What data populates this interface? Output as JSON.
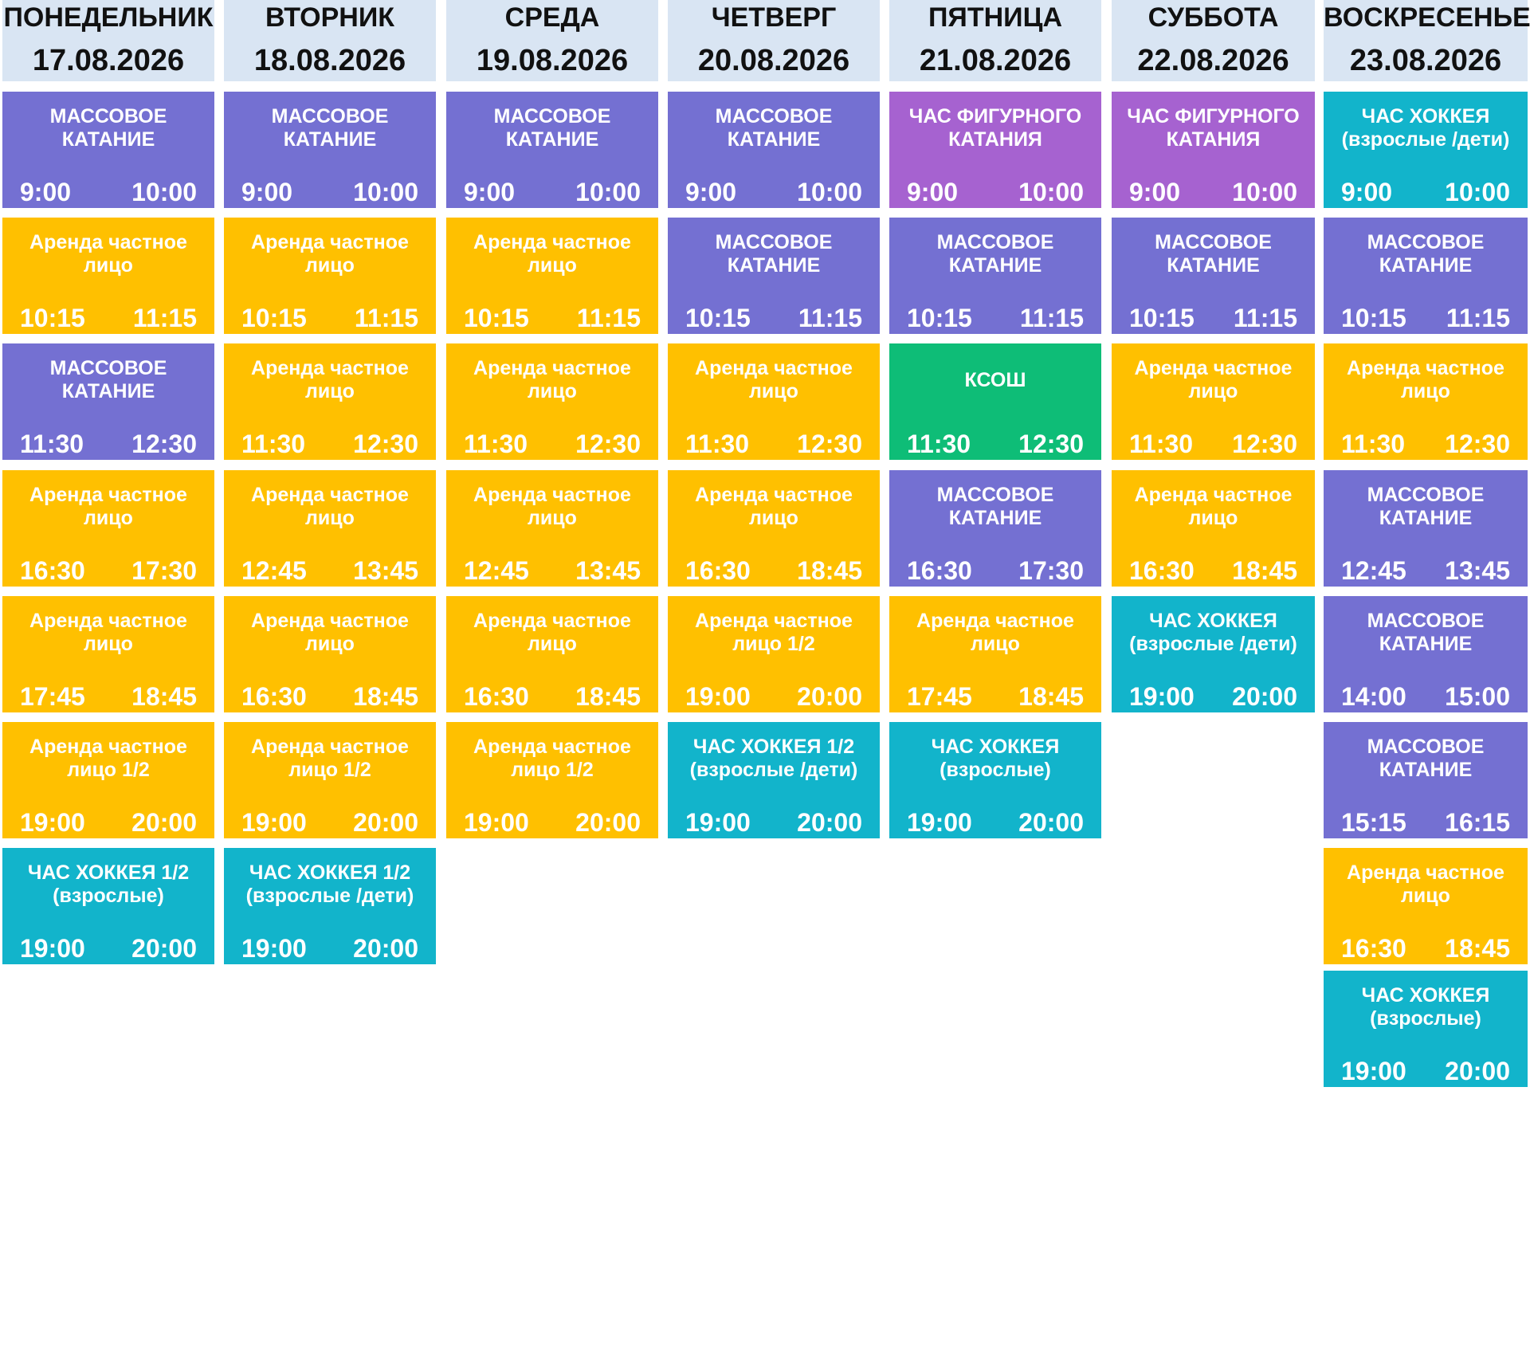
{
  "colors": {
    "header": "#d9e5f3",
    "skating": "#7470d2",
    "figure": "#a662d0",
    "rental": "#ffc000",
    "hockey": "#12b4cb",
    "ksosh": "#0ebd77"
  },
  "days": [
    {
      "name": "ПОНЕДЕЛЬНИК",
      "date": "17.08.2026",
      "slots": [
        {
          "title": "МАССОВОЕ\nКАТАНИЕ",
          "start": "9:00",
          "end": "10:00",
          "kind": "skating"
        },
        {
          "title": "Аренда частное\nлицо",
          "start": "10:15",
          "end": "11:15",
          "kind": "rental"
        },
        {
          "title": "МАССОВОЕ\nКАТАНИЕ",
          "start": "11:30",
          "end": "12:30",
          "kind": "skating"
        },
        {
          "title": "Аренда частное\nлицо",
          "start": "16:30",
          "end": "17:30",
          "kind": "rental"
        },
        {
          "title": "Аренда частное\nлицо",
          "start": "17:45",
          "end": "18:45",
          "kind": "rental"
        },
        {
          "title": "Аренда частное\nлицо 1/2",
          "start": "19:00",
          "end": "20:00",
          "kind": "rental"
        },
        {
          "title": "ЧАС ХОККЕЯ 1/2\n(взрослые)",
          "start": "19:00",
          "end": "20:00",
          "kind": "hockey"
        }
      ]
    },
    {
      "name": "ВТОРНИК",
      "date": "18.08.2026",
      "slots": [
        {
          "title": "МАССОВОЕ\nКАТАНИЕ",
          "start": "9:00",
          "end": "10:00",
          "kind": "skating"
        },
        {
          "title": "Аренда частное\nлицо",
          "start": "10:15",
          "end": "11:15",
          "kind": "rental"
        },
        {
          "title": "Аренда частное\nлицо",
          "start": "11:30",
          "end": "12:30",
          "kind": "rental"
        },
        {
          "title": "Аренда частное\nлицо",
          "start": "12:45",
          "end": "13:45",
          "kind": "rental"
        },
        {
          "title": "Аренда частное\nлицо",
          "start": "16:30",
          "end": "18:45",
          "kind": "rental"
        },
        {
          "title": "Аренда частное\nлицо 1/2",
          "start": "19:00",
          "end": "20:00",
          "kind": "rental"
        },
        {
          "title": "ЧАС ХОККЕЯ 1/2\n(взрослые /дети)",
          "start": "19:00",
          "end": "20:00",
          "kind": "hockey"
        }
      ]
    },
    {
      "name": "СРЕДА",
      "date": "19.08.2026",
      "slots": [
        {
          "title": "МАССОВОЕ\nКАТАНИЕ",
          "start": "9:00",
          "end": "10:00",
          "kind": "skating"
        },
        {
          "title": "Аренда частное\nлицо",
          "start": "10:15",
          "end": "11:15",
          "kind": "rental"
        },
        {
          "title": "Аренда частное\nлицо",
          "start": "11:30",
          "end": "12:30",
          "kind": "rental"
        },
        {
          "title": "Аренда частное\nлицо",
          "start": "12:45",
          "end": "13:45",
          "kind": "rental"
        },
        {
          "title": "Аренда частное\nлицо",
          "start": "16:30",
          "end": "18:45",
          "kind": "rental"
        },
        {
          "title": "Аренда частное\nлицо 1/2",
          "start": "19:00",
          "end": "20:00",
          "kind": "rental"
        }
      ]
    },
    {
      "name": "ЧЕТВЕРГ",
      "date": "20.08.2026",
      "slots": [
        {
          "title": "МАССОВОЕ\nКАТАНИЕ",
          "start": "9:00",
          "end": "10:00",
          "kind": "skating"
        },
        {
          "title": "МАССОВОЕ\nКАТАНИЕ",
          "start": "10:15",
          "end": "11:15",
          "kind": "skating"
        },
        {
          "title": "Аренда частное\nлицо",
          "start": "11:30",
          "end": "12:30",
          "kind": "rental"
        },
        {
          "title": "Аренда частное\nлицо",
          "start": "16:30",
          "end": "18:45",
          "kind": "rental"
        },
        {
          "title": "Аренда частное\nлицо 1/2",
          "start": "19:00",
          "end": "20:00",
          "kind": "rental"
        },
        {
          "title": "ЧАС ХОККЕЯ 1/2\n(взрослые /дети)",
          "start": "19:00",
          "end": "20:00",
          "kind": "hockey"
        }
      ]
    },
    {
      "name": "ПЯТНИЦА",
      "date": "21.08.2026",
      "slots": [
        {
          "title": "ЧАС ФИГУРНОГО\nКАТАНИЯ",
          "start": "9:00",
          "end": "10:00",
          "kind": "figure"
        },
        {
          "title": "МАССОВОЕ\nКАТАНИЕ",
          "start": "10:15",
          "end": "11:15",
          "kind": "skating"
        },
        {
          "title": "КСОШ",
          "start": "11:30",
          "end": "12:30",
          "kind": "ksosh"
        },
        {
          "title": "МАССОВОЕ\nКАТАНИЕ",
          "start": "16:30",
          "end": "17:30",
          "kind": "skating"
        },
        {
          "title": "Аренда частное\nлицо",
          "start": "17:45",
          "end": "18:45",
          "kind": "rental"
        },
        {
          "title": "ЧАС ХОККЕЯ\n(взрослые)",
          "start": "19:00",
          "end": "20:00",
          "kind": "hockey"
        }
      ]
    },
    {
      "name": "СУББОТА",
      "date": "22.08.2026",
      "slots": [
        {
          "title": "ЧАС ФИГУРНОГО\nКАТАНИЯ",
          "start": "9:00",
          "end": "10:00",
          "kind": "figure"
        },
        {
          "title": "МАССОВОЕ\nКАТАНИЕ",
          "start": "10:15",
          "end": "11:15",
          "kind": "skating"
        },
        {
          "title": "Аренда частное\nлицо",
          "start": "11:30",
          "end": "12:30",
          "kind": "rental"
        },
        {
          "title": "Аренда частное\nлицо",
          "start": "16:30",
          "end": "18:45",
          "kind": "rental"
        },
        {
          "title": "ЧАС ХОККЕЯ\n(взрослые /дети)",
          "start": "19:00",
          "end": "20:00",
          "kind": "hockey"
        }
      ]
    },
    {
      "name": "ВОСКРЕСЕНЬЕ",
      "date": "23.08.2026",
      "slots": [
        {
          "title": "ЧАС ХОККЕЯ\n(взрослые /дети)",
          "start": "9:00",
          "end": "10:00",
          "kind": "hockey"
        },
        {
          "title": "МАССОВОЕ\nКАТАНИЕ",
          "start": "10:15",
          "end": "11:15",
          "kind": "skating"
        },
        {
          "title": "Аренда частное\nлицо",
          "start": "11:30",
          "end": "12:30",
          "kind": "rental"
        },
        {
          "title": "МАССОВОЕ\nКАТАНИЕ",
          "start": "12:45",
          "end": "13:45",
          "kind": "skating"
        },
        {
          "title": "МАССОВОЕ\nКАТАНИЕ",
          "start": "14:00",
          "end": "15:00",
          "kind": "skating"
        },
        {
          "title": "МАССОВОЕ\nКАТАНИЕ",
          "start": "15:15",
          "end": "16:15",
          "kind": "skating"
        },
        {
          "title": "Аренда частное\nлицо",
          "start": "16:30",
          "end": "18:45",
          "kind": "rental"
        },
        {
          "title": "ЧАС ХОККЕЯ\n(взрослые)",
          "start": "19:00",
          "end": "20:00",
          "kind": "hockey"
        }
      ]
    }
  ]
}
